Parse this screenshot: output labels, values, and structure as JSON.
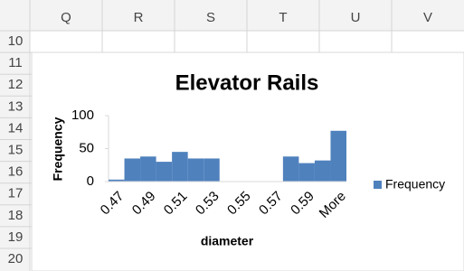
{
  "spreadsheet": {
    "columns": [
      "Q",
      "R",
      "S",
      "T",
      "U",
      "V"
    ],
    "rows": [
      "10",
      "11",
      "12",
      "13",
      "14",
      "15",
      "16",
      "17",
      "18",
      "19",
      "20"
    ]
  },
  "chart_data": {
    "type": "bar",
    "title": "Elevator Rails",
    "x_label": "diameter",
    "y_label": "Frequency",
    "categories": [
      "0.47",
      null,
      "0.49",
      null,
      "0.51",
      null,
      "0.53",
      null,
      "0.55",
      null,
      "0.57",
      null,
      "0.59",
      null,
      "More"
    ],
    "series": [
      {
        "name": "Frequency",
        "color": "#4f81bd",
        "values": [
          3,
          35,
          38,
          30,
          45,
          35,
          35,
          0,
          0,
          0,
          0,
          38,
          28,
          32,
          77
        ]
      }
    ],
    "ylim": [
      0,
      100
    ],
    "yticks": [
      0,
      50,
      100
    ],
    "grid": false,
    "legend": "right"
  }
}
